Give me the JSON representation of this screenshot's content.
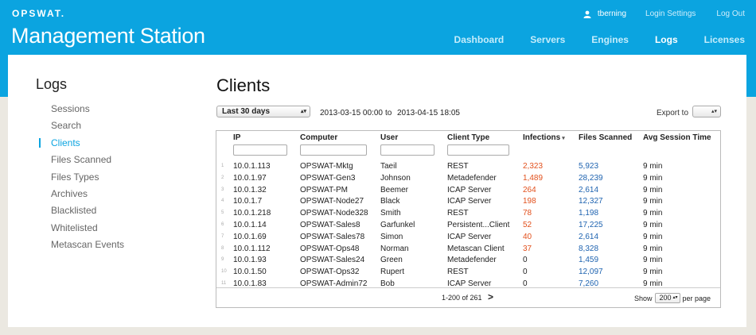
{
  "header": {
    "logo": "OPSWAT.",
    "app_title": "Management Station",
    "user": "tberning",
    "login_settings": "Login Settings",
    "logout": "Log Out",
    "nav": [
      "Dashboard",
      "Servers",
      "Engines",
      "Logs",
      "Licenses"
    ],
    "active_nav": "Logs"
  },
  "sidebar": {
    "title": "Logs",
    "items": [
      "Sessions",
      "Search",
      "Clients",
      "Files Scanned",
      "Files Types",
      "Archives",
      "Blacklisted",
      "Whitelisted",
      "Metascan Events"
    ],
    "active": "Clients"
  },
  "main": {
    "title": "Clients",
    "range_label": "Last 30 days",
    "date_from": "2013-03-15 00:00",
    "date_to_label": "to",
    "date_to": "2013-04-15 18:05",
    "export_label": "Export to"
  },
  "table": {
    "columns": [
      "IP",
      "Computer",
      "User",
      "Client Type",
      "Infections",
      "Files Scanned",
      "Avg Session Time"
    ],
    "sort_indicator": "▾",
    "rows": [
      [
        "1",
        "10.0.1.113",
        "OPSWAT-Mktg",
        "Taeil",
        "REST",
        "2,323",
        "5,923",
        "9 min"
      ],
      [
        "2",
        "10.0.1.97",
        "OPSWAT-Gen3",
        "Johnson",
        "Metadefender",
        "1,489",
        "28,239",
        "9 min"
      ],
      [
        "3",
        "10.0.1.32",
        "OPSWAT-PM",
        "Beemer",
        "ICAP Server",
        "264",
        "2,614",
        "9 min"
      ],
      [
        "4",
        "10.0.1.7",
        "OPSWAT-Node27",
        "Black",
        "ICAP Server",
        "198",
        "12,327",
        "9 min"
      ],
      [
        "5",
        "10.0.1.218",
        "OPSWAT-Node328",
        "Smith",
        "REST",
        "78",
        "1,198",
        "9 min"
      ],
      [
        "6",
        "10.0.1.14",
        "OPSWAT-Sales8",
        "Garfunkel",
        "Persistent...Client",
        "52",
        "17,225",
        "9 min"
      ],
      [
        "7",
        "10.0.1.69",
        "OPSWAT-Sales78",
        "Simon",
        "ICAP Server",
        "40",
        "2,614",
        "9 min"
      ],
      [
        "8",
        "10.0.1.112",
        "OPSWAT-Ops48",
        "Norman",
        "Metascan Client",
        "37",
        "8,328",
        "9 min"
      ],
      [
        "9",
        "10.0.1.93",
        "OPSWAT-Sales24",
        "Green",
        "Metadefender",
        "0",
        "1,459",
        "9 min"
      ],
      [
        "10",
        "10.0.1.50",
        "OPSWAT-Ops32",
        "Rupert",
        "REST",
        "0",
        "12,097",
        "9 min"
      ],
      [
        "11",
        "10.0.1.83",
        "OPSWAT-Admin72",
        "Bob",
        "ICAP Server",
        "0",
        "7,260",
        "9 min"
      ]
    ],
    "pager": "1-200 of 261",
    "next": ">",
    "show_label": "Show",
    "page_size": "200",
    "per_page_label": "per page"
  },
  "colors": {
    "brand": "#0ba4e0",
    "infection": "#e2501c",
    "files": "#1e63b0"
  }
}
